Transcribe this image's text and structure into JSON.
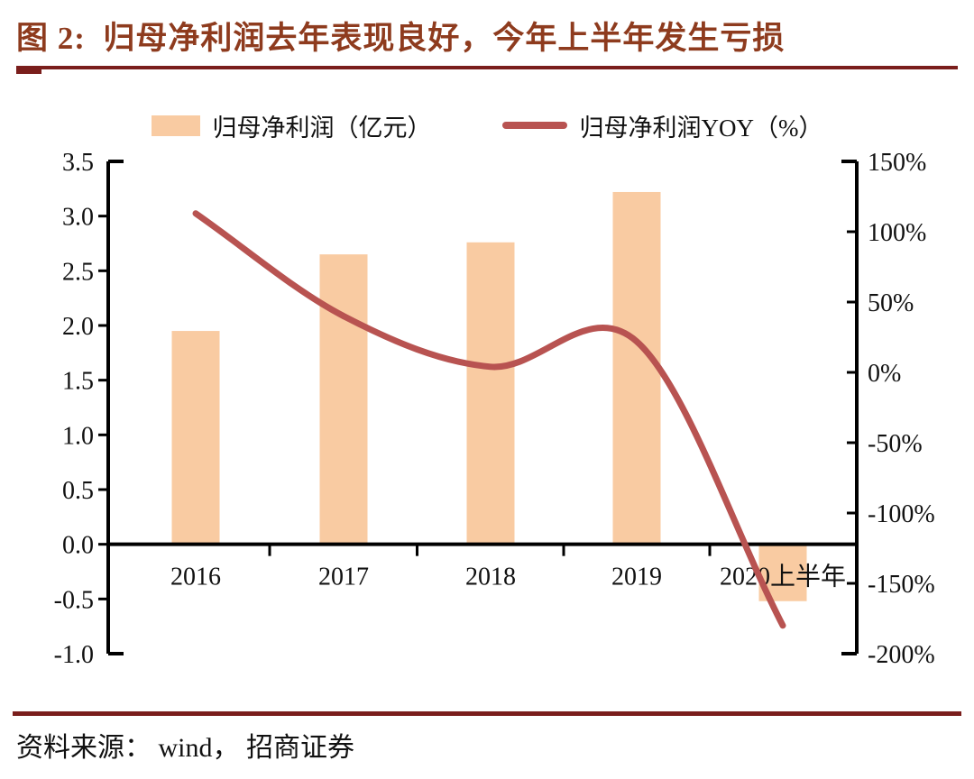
{
  "figure": {
    "title": "图 2:  归母净利润去年表现良好，今年上半年发生亏损",
    "source": "资料来源： wind， 招商证券"
  },
  "legend": [
    {
      "label": "归母净利润（亿元）",
      "type": "bar"
    },
    {
      "label": "归母净利润YOY（%）",
      "type": "line"
    }
  ],
  "colors": {
    "bar": "#F9CBA2",
    "line": "#B85351",
    "title": "#8E3B1E",
    "rule": "#7A1E1C",
    "axis": "#000000",
    "tick_text": "#111111"
  },
  "chart_data": {
    "type": "bar",
    "subtype": "bar-line-combo",
    "categories": [
      "2016",
      "2017",
      "2018",
      "2019",
      "2020上半年"
    ],
    "series": [
      {
        "name": "归母净利润（亿元）",
        "type": "bar",
        "axis": "left",
        "values": [
          1.95,
          2.65,
          2.76,
          3.22,
          -0.52
        ]
      },
      {
        "name": "归母净利润YOY（%）",
        "type": "line",
        "axis": "right",
        "values": [
          113,
          40,
          4,
          22,
          -180
        ]
      }
    ],
    "left_axis": {
      "min": -1.0,
      "max": 3.5,
      "step": 0.5,
      "ticks": [
        "3.5",
        "3.0",
        "2.5",
        "2.0",
        "1.5",
        "1.0",
        "0.5",
        "0.0",
        "-0.5",
        "-1.0"
      ]
    },
    "right_axis": {
      "min": -200,
      "max": 150,
      "step": 50,
      "ticks": [
        "150%",
        "100%",
        "50%",
        "0%",
        "-50%",
        "-100%",
        "-150%",
        "-200%"
      ]
    },
    "grid": false,
    "legend_position": "top"
  }
}
